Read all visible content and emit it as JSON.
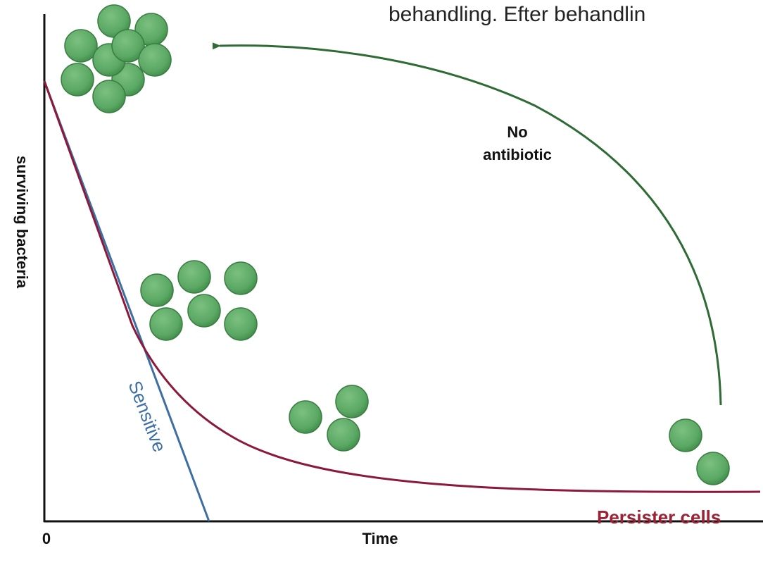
{
  "header_fragment": "behandling. Efter behandlin",
  "arrow_label": [
    "No",
    "antibiotic"
  ],
  "y_axis_label": "surviving bacteria",
  "x_axis_label": "Time",
  "x_origin_label": "0",
  "curves": {
    "sensitive": "Sensitive",
    "persister": "Persister cells"
  }
}
